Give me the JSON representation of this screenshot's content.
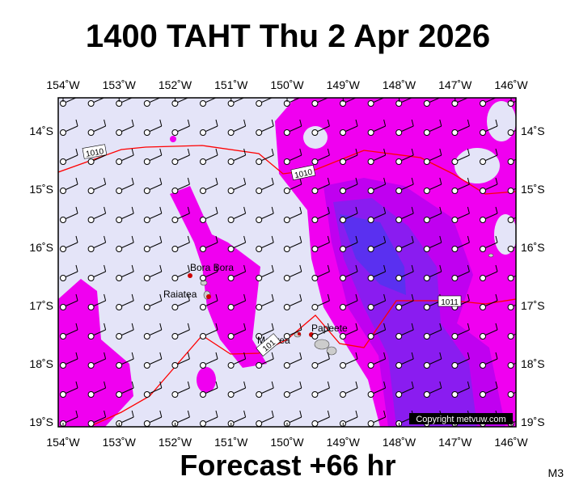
{
  "title": "1400 TAHT Thu 2 Apr 2026",
  "footer": "Forecast +66 hr",
  "code": "M3",
  "lon_labels": [
    "154˚W",
    "153˚W",
    "152˚W",
    "151˚W",
    "150˚W",
    "149˚W",
    "148˚W",
    "147˚W",
    "146˚W"
  ],
  "lat_labels": [
    "14˚S",
    "15˚S",
    "16˚S",
    "17˚S",
    "18˚S",
    "19˚S"
  ],
  "places": [
    "Bora Bora",
    "Raiatea",
    "Moorea",
    "Papeete"
  ],
  "isobar_labels": [
    "1010",
    "1010",
    "1011",
    "101"
  ],
  "copyright": "Copyright metvuw.com"
}
